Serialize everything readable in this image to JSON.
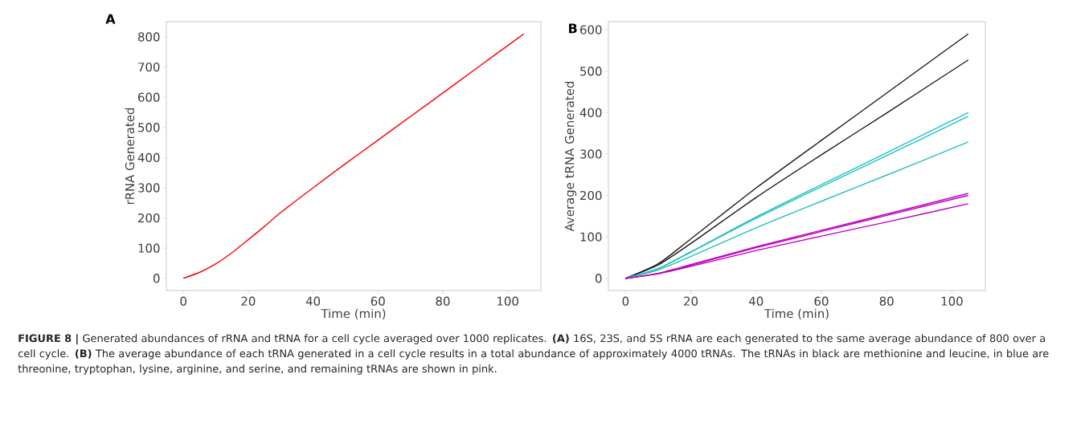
{
  "chart_data": [
    {
      "type": "line",
      "title": "A",
      "xlabel": "Time (min)",
      "ylabel": "rRNA Generated",
      "x": [
        0,
        5,
        10,
        15,
        20,
        25,
        30,
        40,
        50,
        60,
        70,
        80,
        90,
        100,
        105
      ],
      "series": [
        {
          "color": "#ff0000",
          "values": [
            0,
            20,
            48,
            85,
            128,
            172,
            218,
            300,
            380,
            458,
            536,
            614,
            693,
            771,
            810
          ]
        }
      ],
      "xlim": [
        -5.25,
        110.25
      ],
      "ylim": [
        -40.5,
        850.5
      ],
      "xticks": [
        0,
        20,
        40,
        60,
        80,
        100
      ],
      "yticks": [
        0,
        100,
        200,
        300,
        400,
        500,
        600,
        700,
        800
      ],
      "annotations": [
        "**FIGURE 8 |** Generated abundances of rRNA and tRNA for a cell cycle averaged over 1000 replicates. **(A)** 16S, 23S, and 5S rRNA are each generated to the same average abundance of 800 over a cell cycle. **(B)** The average abundance of each tRNA generated in a cell cycle results in a total abundance of approximately 4000 tRNAs. The tRNAs in black are methionine and leucine, in blue are threonine, tryptophan, lysine, arginine, and serine, and remaining tRNAs are shown in pink."
      ]
    },
    {
      "type": "line",
      "title": "B",
      "xlabel": "Time (min)",
      "ylabel": "Average tRNA Generated",
      "x": [
        0,
        10,
        20,
        40,
        60,
        80,
        105
      ],
      "series": [
        {
          "color": "#1a1a1a",
          "values": [
            0,
            35,
            95,
            218,
            333,
            447,
            590
          ]
        },
        {
          "color": "#1a1a1a",
          "values": [
            0,
            32,
            84,
            195,
            298,
            399,
            527
          ]
        },
        {
          "color": "#20c0c0",
          "values": [
            0,
            24,
            64,
            148,
            226,
            303,
            400
          ]
        },
        {
          "color": "#20c0c0",
          "values": [
            0,
            23,
            63,
            145,
            221,
            296,
            391
          ]
        },
        {
          "color": "#20c0c0",
          "values": [
            0,
            20,
            53,
            122,
            186,
            249,
            329
          ]
        },
        {
          "color": "#c000c0",
          "values": [
            0,
            12,
            33,
            76,
            116,
            155,
            205
          ]
        },
        {
          "color": "#c000c0",
          "values": [
            0,
            12,
            32,
            74,
            113,
            152,
            200
          ]
        },
        {
          "color": "#c000c0",
          "values": [
            0,
            11,
            29,
            67,
            102,
            136,
            180
          ]
        }
      ],
      "xlim": [
        -5.25,
        110.25
      ],
      "ylim": [
        -29.5,
        619.5
      ],
      "xticks": [
        0,
        20,
        40,
        60,
        80,
        100
      ],
      "yticks": [
        0,
        100,
        200,
        300,
        400,
        500,
        600
      ]
    }
  ]
}
